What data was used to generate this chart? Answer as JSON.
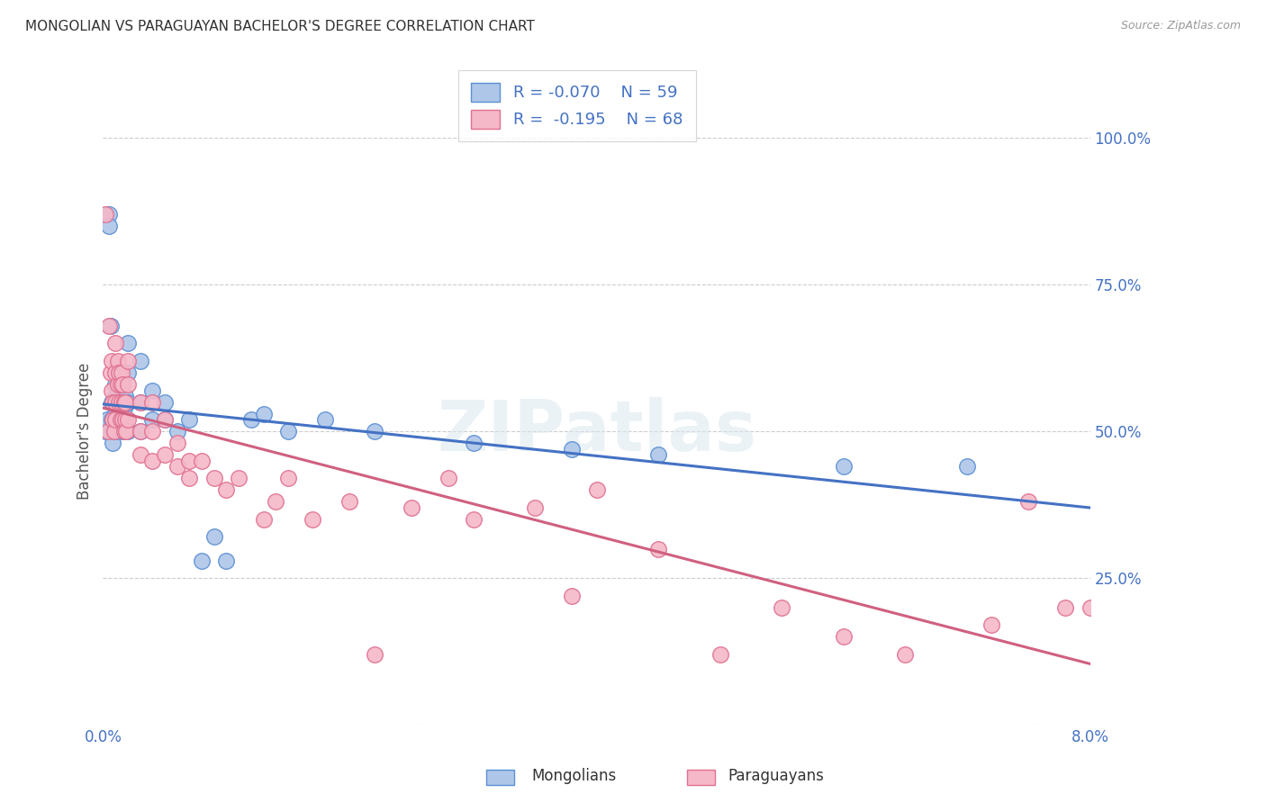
{
  "title": "MONGOLIAN VS PARAGUAYAN BACHELOR'S DEGREE CORRELATION CHART",
  "source": "Source: ZipAtlas.com",
  "xlabel_mongolian": "Mongolians",
  "xlabel_paraguayan": "Paraguayans",
  "ylabel": "Bachelor's Degree",
  "watermark": "ZIPatlas",
  "mongolian_R": -0.07,
  "mongolian_N": 59,
  "paraguayan_R": -0.195,
  "paraguayan_N": 68,
  "xlim": [
    0.0,
    0.08
  ],
  "ylim": [
    0.0,
    1.0
  ],
  "xtick_left": 0.0,
  "xtick_right": 0.08,
  "xtick_left_label": "0.0%",
  "xtick_right_label": "8.0%",
  "yticks": [
    0.0,
    0.25,
    0.5,
    0.75,
    1.0
  ],
  "yticklabels": [
    "",
    "25.0%",
    "50.0%",
    "75.0%",
    "100.0%"
  ],
  "mongolian_color": "#aec6e8",
  "paraguayan_color": "#f5b8c8",
  "mongolian_edge_color": "#5b8fd4",
  "paraguayan_edge_color": "#e07090",
  "mongolian_line_color": "#4472c4",
  "paraguayan_line_color": "#d06080",
  "mongolian_scatter_x": [
    0.0002,
    0.0003,
    0.0005,
    0.0005,
    0.0006,
    0.0007,
    0.0007,
    0.0008,
    0.0008,
    0.0009,
    0.001,
    0.001,
    0.001,
    0.001,
    0.001,
    0.0012,
    0.0012,
    0.0012,
    0.0013,
    0.0013,
    0.0014,
    0.0014,
    0.0015,
    0.0015,
    0.0015,
    0.0015,
    0.0016,
    0.0016,
    0.0017,
    0.0017,
    0.0018,
    0.0018,
    0.0019,
    0.002,
    0.002,
    0.002,
    0.002,
    0.003,
    0.003,
    0.003,
    0.004,
    0.004,
    0.005,
    0.005,
    0.006,
    0.007,
    0.008,
    0.009,
    0.01,
    0.012,
    0.013,
    0.015,
    0.018,
    0.022,
    0.03,
    0.038,
    0.045,
    0.06,
    0.07
  ],
  "mongolian_scatter_y": [
    0.5,
    0.52,
    0.87,
    0.85,
    0.68,
    0.55,
    0.52,
    0.5,
    0.48,
    0.5,
    0.58,
    0.56,
    0.54,
    0.52,
    0.5,
    0.6,
    0.57,
    0.54,
    0.55,
    0.52,
    0.56,
    0.53,
    0.58,
    0.55,
    0.53,
    0.5,
    0.55,
    0.52,
    0.54,
    0.5,
    0.56,
    0.52,
    0.5,
    0.65,
    0.6,
    0.55,
    0.5,
    0.62,
    0.55,
    0.5,
    0.57,
    0.52,
    0.55,
    0.52,
    0.5,
    0.52,
    0.28,
    0.32,
    0.28,
    0.52,
    0.53,
    0.5,
    0.52,
    0.5,
    0.48,
    0.47,
    0.46,
    0.44,
    0.44
  ],
  "paraguayan_scatter_x": [
    0.0002,
    0.0004,
    0.0005,
    0.0006,
    0.0007,
    0.0007,
    0.0008,
    0.0008,
    0.0009,
    0.001,
    0.001,
    0.001,
    0.001,
    0.0012,
    0.0012,
    0.0013,
    0.0013,
    0.0014,
    0.0014,
    0.0015,
    0.0015,
    0.0016,
    0.0016,
    0.0017,
    0.0017,
    0.0018,
    0.0018,
    0.0019,
    0.002,
    0.002,
    0.002,
    0.003,
    0.003,
    0.003,
    0.004,
    0.004,
    0.004,
    0.005,
    0.005,
    0.006,
    0.006,
    0.007,
    0.007,
    0.008,
    0.009,
    0.01,
    0.011,
    0.013,
    0.014,
    0.015,
    0.017,
    0.02,
    0.022,
    0.025,
    0.028,
    0.03,
    0.035,
    0.038,
    0.04,
    0.045,
    0.05,
    0.055,
    0.06,
    0.065,
    0.072,
    0.075,
    0.078,
    0.08
  ],
  "paraguayan_scatter_y": [
    0.87,
    0.5,
    0.68,
    0.6,
    0.62,
    0.57,
    0.55,
    0.52,
    0.5,
    0.65,
    0.6,
    0.55,
    0.52,
    0.62,
    0.58,
    0.6,
    0.55,
    0.58,
    0.52,
    0.6,
    0.55,
    0.58,
    0.52,
    0.55,
    0.5,
    0.55,
    0.52,
    0.5,
    0.62,
    0.58,
    0.52,
    0.55,
    0.5,
    0.46,
    0.55,
    0.5,
    0.45,
    0.52,
    0.46,
    0.48,
    0.44,
    0.45,
    0.42,
    0.45,
    0.42,
    0.4,
    0.42,
    0.35,
    0.38,
    0.42,
    0.35,
    0.38,
    0.12,
    0.37,
    0.42,
    0.35,
    0.37,
    0.22,
    0.4,
    0.3,
    0.12,
    0.2,
    0.15,
    0.12,
    0.17,
    0.38,
    0.2,
    0.2
  ]
}
